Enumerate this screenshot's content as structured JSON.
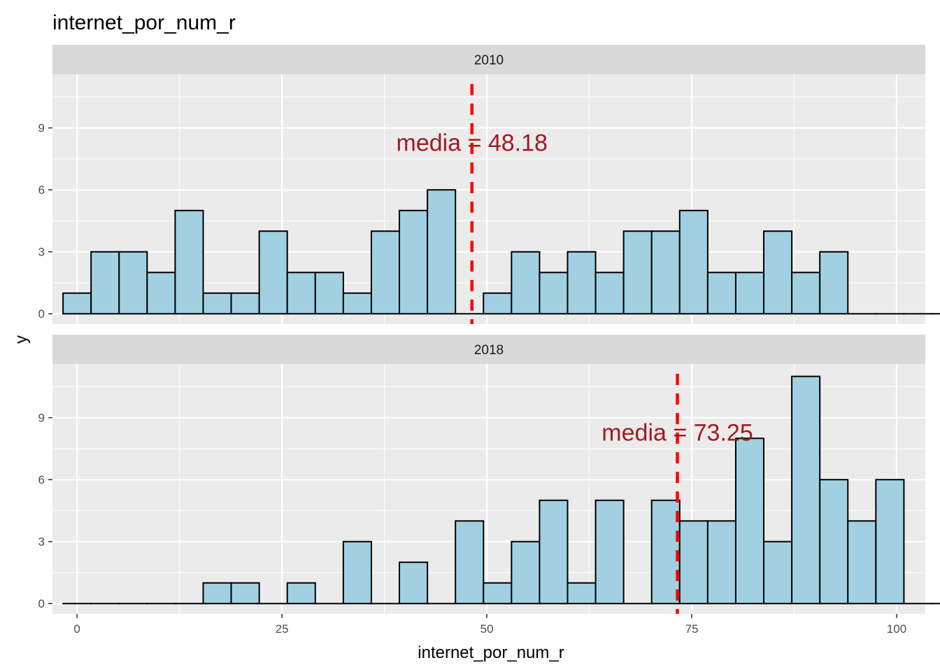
{
  "chart_data": {
    "type": "bar",
    "title": "internet_por_num_r",
    "xlabel": "internet_por_num_r",
    "ylabel": "y",
    "xlim": [
      -3,
      103.5
    ],
    "ylim": [
      -0.5,
      11.6
    ],
    "x_ticks": [
      0,
      25,
      50,
      75,
      100
    ],
    "y_ticks": [
      0,
      3,
      6,
      9
    ],
    "bin_width": 3.42,
    "bin_start": -1.71,
    "fill_color": "#a1d0e2",
    "line_color": "#ff0000",
    "annotation_color": "#a31a22",
    "grid": true,
    "panels": [
      {
        "label": "2010",
        "mean_x": 48.18,
        "annotation": "media = 48.18",
        "annotation_x": 48.18,
        "annotation_y": 8.3,
        "counts": [
          1,
          3,
          3,
          2,
          5,
          1,
          1,
          4,
          2,
          2,
          1,
          4,
          5,
          6,
          0,
          1,
          3,
          2,
          3,
          2,
          4,
          4,
          5,
          2,
          2,
          4,
          2,
          3,
          0,
          0,
          0,
          0,
          0,
          0
        ]
      },
      {
        "label": "2018",
        "mean_x": 73.25,
        "annotation": "media = 73.25",
        "annotation_x": 73.25,
        "annotation_y": 8.3,
        "counts": [
          0,
          0,
          0,
          0,
          0,
          1,
          1,
          0,
          1,
          0,
          3,
          0,
          2,
          0,
          4,
          1,
          3,
          5,
          1,
          5,
          0,
          5,
          4,
          4,
          8,
          3,
          11,
          6,
          4,
          6,
          0,
          0,
          0,
          0
        ]
      }
    ]
  }
}
